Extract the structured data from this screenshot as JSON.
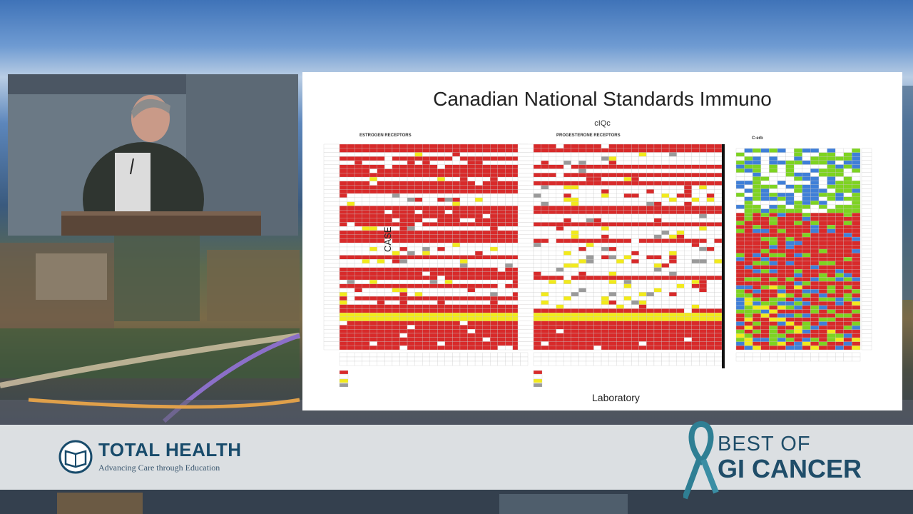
{
  "slide": {
    "title": "Canadian National Standards Immuno",
    "subtitle": "cIQc",
    "panels": [
      "ESTROGEN RECEPTORS",
      "PROGESTERONE RECEPTORS",
      "C-erb"
    ],
    "y_label": "CASE",
    "x_label": "Laboratory"
  },
  "banner": {
    "total_health": {
      "name": "TOTAL HEALTH",
      "tagline": "Advancing Care through Education"
    },
    "best_of": {
      "line1": "BEST OF",
      "line2": "GI CANCER"
    }
  },
  "colors": {
    "positive": "#d82a2a",
    "negative": "#ffffff",
    "unsuitable": "#f2ea1c",
    "background_stain": "#9a9a9a",
    "cerb_green": "#7ed321",
    "cerb_blue": "#3f7fd8",
    "brand": "#1f4d69"
  }
}
